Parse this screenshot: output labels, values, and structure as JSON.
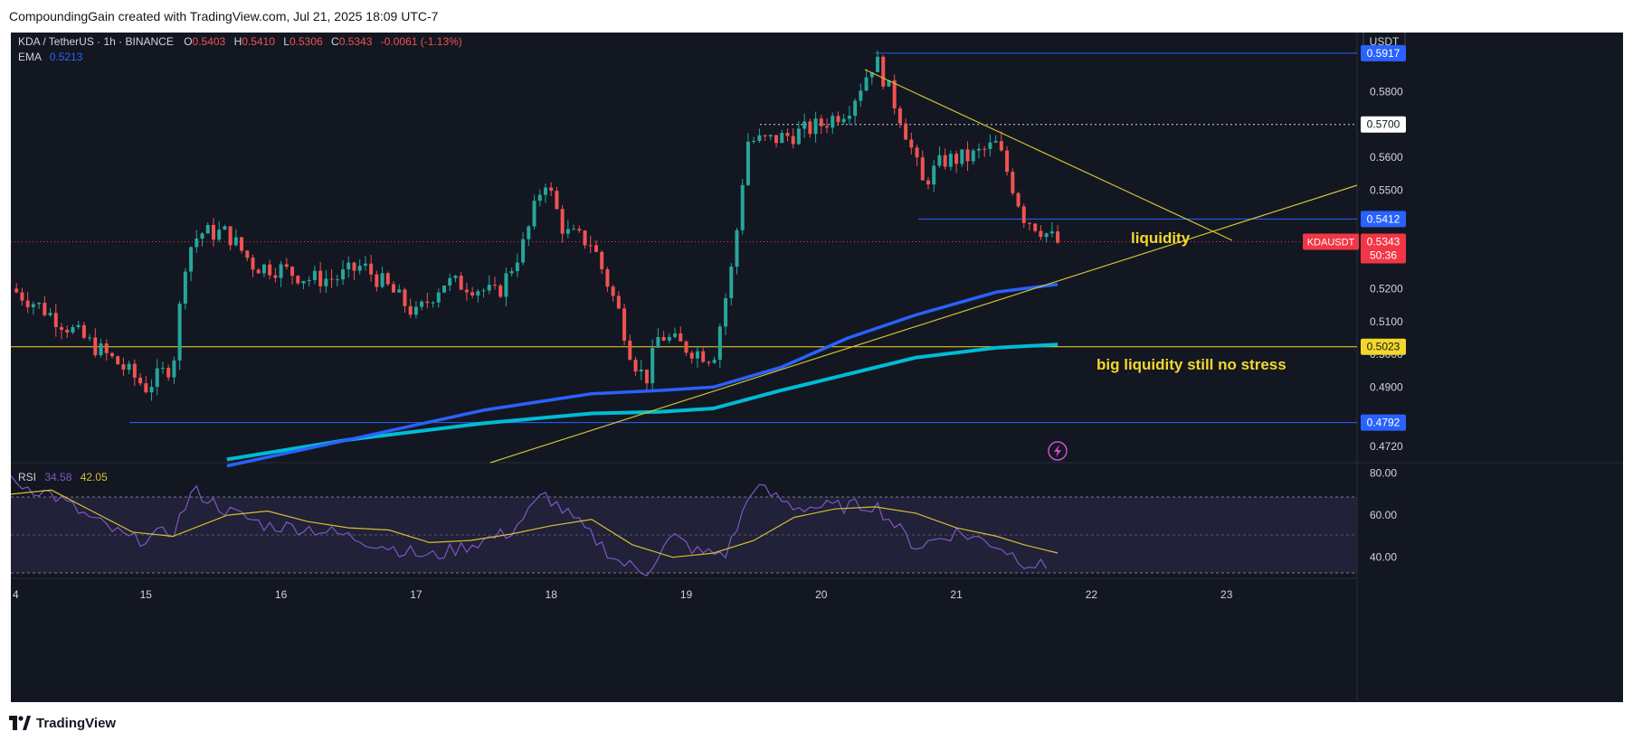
{
  "header": {
    "credit": "CompoundingGain created with TradingView.com, Jul 21, 2025 18:09 UTC-7"
  },
  "footer": {
    "brand": "TradingView"
  },
  "colors": {
    "background": "#131722",
    "up": "#26a69a",
    "down": "#ef5350",
    "ema_fast": "#2962ff",
    "ema_slow": "#00bcd4",
    "trendline": "#d4c032",
    "annotation": "#f5d72b",
    "rsi_line": "#7e57c2",
    "rsi_ma": "#d4c032",
    "blue_level": "#2962ff",
    "yellow_level": "#f5d72b",
    "price_label": "#f23645"
  },
  "chart_data": [
    {
      "type": "candlestick",
      "title": "KDA / TetherUS · 1h · BINANCE",
      "ohlc_legend": {
        "O": "0.5403",
        "H": "0.5410",
        "L": "0.5306",
        "C": "0.5343",
        "change": "-0.0061 (-1.13%)"
      },
      "indicator": {
        "name": "EMA",
        "value": "0.5213"
      },
      "currency": "USDT",
      "x_ticks": [
        "4",
        "15",
        "16",
        "17",
        "18",
        "19",
        "20",
        "21",
        "22",
        "23"
      ],
      "y_ticks": [
        "0.5800",
        "0.5600",
        "0.5500",
        "0.5200",
        "0.5100",
        "0.5000",
        "0.4900",
        "0.4720"
      ],
      "ylim": [
        0.467,
        0.598
      ],
      "price_levels": [
        {
          "label": "0.5917",
          "value": 0.5917,
          "style": "blue"
        },
        {
          "label": "0.5700",
          "value": 0.57,
          "style": "white"
        },
        {
          "label": "0.5412",
          "value": 0.5412,
          "style": "blue"
        },
        {
          "label": "0.5023",
          "value": 0.5023,
          "style": "yellow"
        },
        {
          "label": "0.4792",
          "value": 0.4792,
          "style": "blue"
        }
      ],
      "last_price": {
        "symbol": "KDAUSDT",
        "price": "0.5343",
        "countdown": "50:36",
        "value": 0.5343
      },
      "annotations": [
        "liquidity",
        "big liquidity still no stress"
      ],
      "series": [
        {
          "name": "KDA/USDT close (approx.)",
          "x": [
            14.0,
            14.2,
            14.4,
            14.6,
            14.8,
            15.0,
            15.2,
            15.3,
            15.4,
            15.6,
            15.8,
            16.0,
            16.2,
            16.4,
            16.6,
            16.8,
            17.0,
            17.2,
            17.4,
            17.6,
            17.8,
            17.95,
            18.1,
            18.3,
            18.5,
            18.6,
            18.7,
            18.8,
            19.0,
            19.2,
            19.35,
            19.45,
            19.6,
            19.8,
            20.0,
            20.2,
            20.4,
            20.6,
            20.75,
            20.9,
            21.1,
            21.3,
            21.5,
            21.6,
            21.75
          ],
          "y": [
            0.52,
            0.515,
            0.509,
            0.503,
            0.497,
            0.49,
            0.497,
            0.531,
            0.537,
            0.537,
            0.527,
            0.526,
            0.523,
            0.523,
            0.527,
            0.52,
            0.512,
            0.522,
            0.521,
            0.518,
            0.534,
            0.554,
            0.537,
            0.534,
            0.513,
            0.499,
            0.492,
            0.506,
            0.502,
            0.499,
            0.529,
            0.565,
            0.565,
            0.567,
            0.57,
            0.575,
            0.59,
            0.571,
            0.552,
            0.559,
            0.56,
            0.564,
            0.542,
            0.539,
            0.534
          ]
        },
        {
          "name": "EMA fast (approx.)",
          "x": [
            15.6,
            16.5,
            17.5,
            18.3,
            18.8,
            19.2,
            19.7,
            20.2,
            20.7,
            21.3,
            21.75
          ],
          "y": [
            0.466,
            0.474,
            0.483,
            0.488,
            0.489,
            0.49,
            0.496,
            0.505,
            0.512,
            0.519,
            0.5213
          ]
        },
        {
          "name": "EMA slow (approx.)",
          "x": [
            15.6,
            16.5,
            17.5,
            18.3,
            18.8,
            19.2,
            19.7,
            20.2,
            20.7,
            21.3,
            21.75
          ],
          "y": [
            0.468,
            0.474,
            0.479,
            0.482,
            0.4825,
            0.4835,
            0.489,
            0.494,
            0.499,
            0.502,
            0.503
          ]
        }
      ]
    },
    {
      "type": "line",
      "title": "RSI",
      "legend_values": [
        "34.58",
        "42.05"
      ],
      "y_ticks": [
        "80.00",
        "60.00",
        "40.00"
      ],
      "ylim": [
        30,
        85
      ],
      "bands": [
        70,
        50,
        30
      ],
      "series": [
        {
          "name": "RSI (approx.)",
          "x": [
            14.0,
            14.3,
            14.6,
            14.9,
            15.2,
            15.35,
            15.6,
            15.9,
            16.2,
            16.5,
            16.8,
            17.1,
            17.4,
            17.7,
            17.95,
            18.2,
            18.5,
            18.7,
            18.9,
            19.1,
            19.3,
            19.5,
            19.8,
            20.1,
            20.4,
            20.7,
            21.0,
            21.3,
            21.5,
            21.7
          ],
          "y": [
            76,
            70,
            58,
            48,
            52,
            72,
            62,
            55,
            54,
            50,
            45,
            40,
            46,
            52,
            70,
            56,
            38,
            33,
            50,
            42,
            42,
            74,
            64,
            64,
            65,
            45,
            52,
            46,
            38,
            34.58
          ]
        },
        {
          "name": "RSI MA (approx.)",
          "x": [
            14.0,
            14.3,
            14.6,
            14.9,
            15.2,
            15.6,
            15.9,
            16.2,
            16.5,
            16.8,
            17.1,
            17.4,
            17.7,
            18.0,
            18.3,
            18.6,
            18.9,
            19.2,
            19.5,
            19.8,
            20.1,
            20.4,
            20.7,
            21.0,
            21.3,
            21.5,
            21.75
          ],
          "y": [
            70,
            72,
            62,
            52,
            50,
            60,
            62,
            57,
            54,
            53,
            47,
            48,
            51,
            55,
            58,
            46,
            40,
            42,
            48,
            59,
            63,
            64,
            61,
            54,
            50,
            46,
            42.05
          ]
        }
      ]
    }
  ]
}
